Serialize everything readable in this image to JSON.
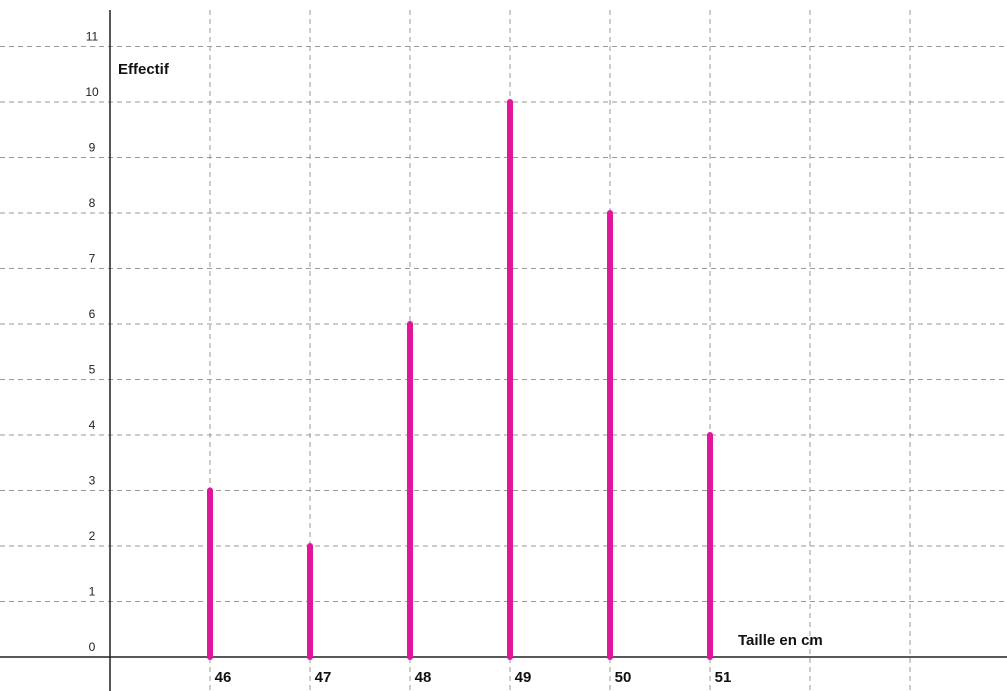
{
  "chart_data": {
    "type": "bar",
    "categories": [
      "46",
      "47",
      "48",
      "49",
      "50",
      "51"
    ],
    "values": [
      3,
      2,
      6,
      10,
      8,
      4
    ],
    "title": "",
    "xlabel": "Taille en cm",
    "ylabel": "Effectif",
    "ylim": [
      0,
      11
    ],
    "yticks": [
      "0",
      "1",
      "2",
      "3",
      "4",
      "5",
      "6",
      "7",
      "8",
      "9",
      "10",
      "11"
    ],
    "grid": true,
    "bar_color": "#e0179a"
  }
}
